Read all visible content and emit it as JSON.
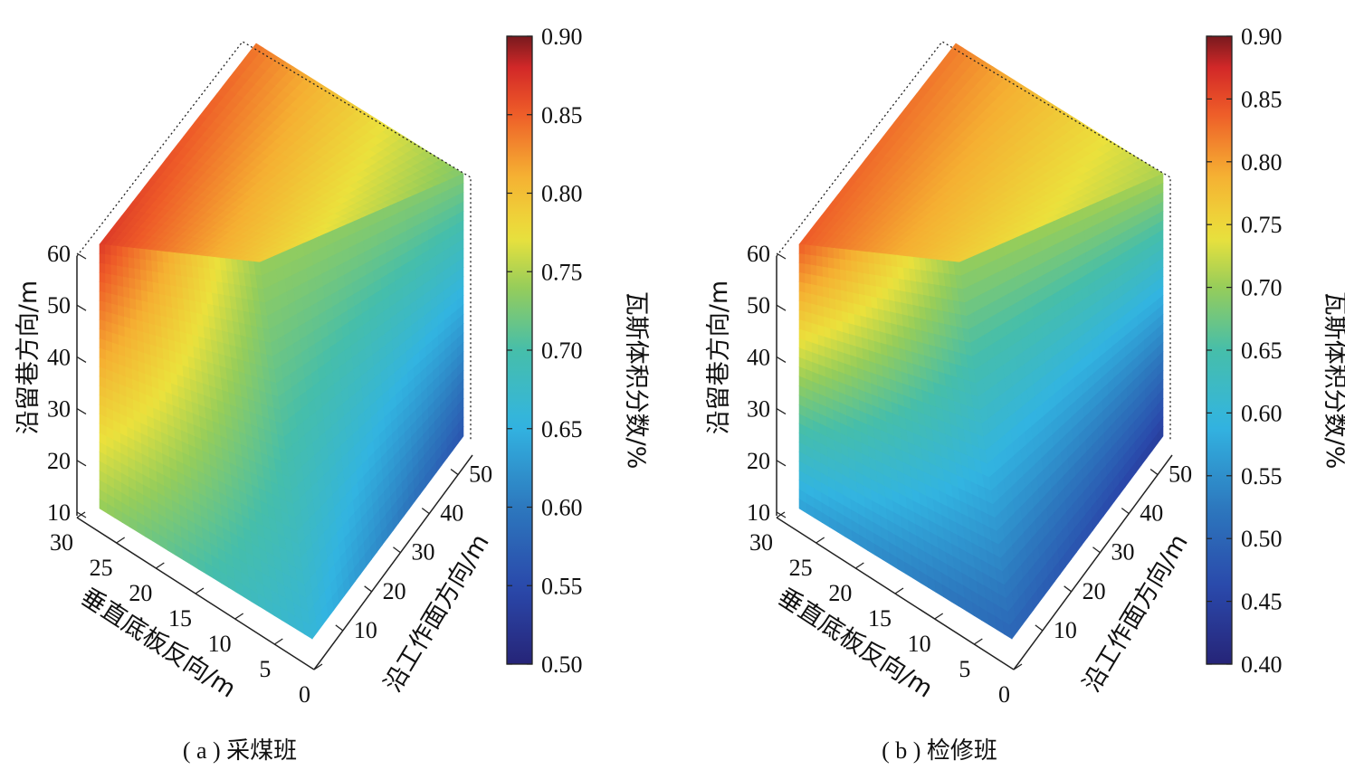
{
  "chart_data": [
    {
      "type": "surface3d",
      "caption": "( a ) 采煤班",
      "xlabel": "垂直底板反向/m",
      "ylabel": "沿工作面方向/m",
      "zlabel": "沿留巷方向/m",
      "colorbar_label": "瓦斯体积分数/%",
      "x_ticks": [
        "30",
        "25",
        "20",
        "15",
        "10",
        "5",
        "0"
      ],
      "y_ticks": [
        "10",
        "20",
        "30",
        "40",
        "50"
      ],
      "z_ticks": [
        "10",
        "20",
        "30",
        "40",
        "50",
        "60"
      ],
      "colorbar_ticks": [
        "0.90",
        "0.85",
        "0.80",
        "0.75",
        "0.70",
        "0.65",
        "0.60",
        "0.55",
        "0.50"
      ],
      "clim": [
        0.5,
        0.9
      ],
      "xlim": [
        0,
        30
      ],
      "ylim": [
        0,
        55
      ],
      "zlim": [
        10,
        60
      ],
      "sections": {
        "top_face": {
          "near_low_y": 0.87,
          "far_low_y": 0.84,
          "near_high_y": 0.79,
          "far_high_y": 0.73
        },
        "side_face": {
          "top_left": 0.86,
          "top_right": 0.74,
          "mid_left": 0.87,
          "bottom_left": 0.74
        },
        "bottom_face": {
          "front_left": 0.74,
          "front_right": 0.66,
          "back_left": 0.63,
          "back_right": 0.56
        }
      }
    },
    {
      "type": "surface3d",
      "caption": "( b ) 检修班",
      "xlabel": "垂直底板反向/m",
      "ylabel": "沿工作面方向/m",
      "zlabel": "沿留巷方向/m",
      "colorbar_label": "瓦斯体积分数/%",
      "x_ticks": [
        "30",
        "25",
        "20",
        "15",
        "10",
        "5",
        "0"
      ],
      "y_ticks": [
        "10",
        "20",
        "30",
        "40",
        "50"
      ],
      "z_ticks": [
        "10",
        "20",
        "30",
        "40",
        "50",
        "60"
      ],
      "colorbar_ticks": [
        "0.90",
        "0.85",
        "0.80",
        "0.75",
        "0.70",
        "0.65",
        "0.60",
        "0.55",
        "0.50",
        "0.45",
        "0.40"
      ],
      "clim": [
        0.4,
        0.9
      ],
      "xlim": [
        0,
        30
      ],
      "ylim": [
        0,
        55
      ],
      "zlim": [
        10,
        60
      ],
      "sections": {
        "top_face": {
          "near_low_y": 0.84,
          "far_low_y": 0.82,
          "near_high_y": 0.76,
          "far_high_y": 0.71
        },
        "side_face": {
          "top_left": 0.83,
          "top_right": 0.7,
          "mid_left": 0.84,
          "bottom_left": 0.57
        },
        "bottom_face": {
          "front_left": 0.55,
          "front_right": 0.5,
          "back_left": 0.47,
          "back_right": 0.44
        }
      }
    }
  ]
}
